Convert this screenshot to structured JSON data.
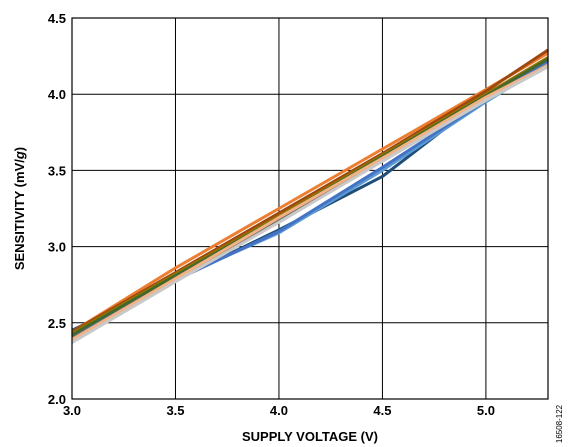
{
  "chart_data": {
    "type": "line",
    "xlabel": "SUPPLY VOLTAGE (V)",
    "ylabel_prefix": "SENSITIVITY (mV/",
    "ylabel_italic": "g",
    "ylabel_suffix": ")",
    "xlim": [
      3.0,
      5.3
    ],
    "ylim": [
      2.0,
      4.5
    ],
    "x_ticks": [
      3.0,
      3.5,
      4.0,
      4.5,
      5.0
    ],
    "x_tick_labels": [
      "3.0",
      "3.5",
      "4.0",
      "4.5",
      "5.0"
    ],
    "y_ticks": [
      2.0,
      2.5,
      3.0,
      3.5,
      4.0,
      4.5
    ],
    "y_tick_labels": [
      "2.0",
      "2.5",
      "3.0",
      "3.5",
      "4.0",
      "4.5"
    ],
    "grid": true,
    "figure_id": "16508-122",
    "series": [
      {
        "color": "#1f4e79",
        "x": [
          3.0,
          3.5,
          4.0,
          4.5,
          5.0,
          5.3
        ],
        "y": [
          2.45,
          2.78,
          3.11,
          3.46,
          3.98,
          4.23
        ]
      },
      {
        "color": "#ed7d31",
        "x": [
          3.0,
          3.5,
          4.0,
          4.5,
          5.0,
          5.3
        ],
        "y": [
          2.44,
          2.86,
          3.25,
          3.64,
          4.03,
          4.27
        ]
      },
      {
        "color": "#a5a5a5",
        "x": [
          3.0,
          3.5,
          4.0,
          4.5,
          5.0,
          5.3
        ],
        "y": [
          2.41,
          2.8,
          3.19,
          3.58,
          3.97,
          4.21
        ]
      },
      {
        "color": "#ffc000",
        "x": [
          3.0,
          3.5,
          4.0,
          4.5,
          5.0,
          5.3
        ],
        "y": [
          2.42,
          2.81,
          3.2,
          3.59,
          3.98,
          4.22
        ]
      },
      {
        "color": "#5b9bd5",
        "x": [
          3.0,
          3.5,
          4.0,
          4.5,
          5.0,
          5.3
        ],
        "y": [
          2.43,
          2.79,
          3.09,
          3.5,
          3.95,
          4.2
        ]
      },
      {
        "color": "#70ad47",
        "x": [
          3.0,
          3.5,
          4.0,
          4.5,
          5.0,
          5.3
        ],
        "y": [
          2.42,
          2.8,
          3.16,
          3.57,
          3.99,
          4.24
        ]
      },
      {
        "color": "#264478",
        "x": [
          3.0,
          3.5,
          4.0,
          4.5,
          5.0,
          5.3
        ],
        "y": [
          2.43,
          2.82,
          3.21,
          3.6,
          4.0,
          4.23
        ]
      },
      {
        "color": "#9e480e",
        "x": [
          3.0,
          3.5,
          4.0,
          4.5,
          5.0,
          5.3
        ],
        "y": [
          2.44,
          2.83,
          3.22,
          3.61,
          4.02,
          4.29
        ]
      },
      {
        "color": "#636363",
        "x": [
          3.0,
          3.5,
          4.0,
          4.5,
          5.0,
          5.3
        ],
        "y": [
          2.41,
          2.79,
          3.18,
          3.58,
          3.98,
          4.22
        ]
      },
      {
        "color": "#997300",
        "x": [
          3.0,
          3.5,
          4.0,
          4.5,
          5.0,
          5.3
        ],
        "y": [
          2.43,
          2.82,
          3.2,
          3.6,
          4.0,
          4.24
        ]
      },
      {
        "color": "#4472c4",
        "x": [
          3.0,
          3.5,
          4.0,
          4.5,
          5.0,
          5.3
        ],
        "y": [
          2.42,
          2.78,
          3.1,
          3.52,
          3.96,
          4.22
        ]
      },
      {
        "color": "#43682b",
        "x": [
          3.0,
          3.5,
          4.0,
          4.5,
          5.0,
          5.3
        ],
        "y": [
          2.42,
          2.81,
          3.19,
          3.59,
          3.99,
          4.23
        ]
      },
      {
        "color": "#f4b183",
        "x": [
          3.0,
          3.5,
          4.0,
          4.5,
          5.0,
          5.3
        ],
        "y": [
          2.39,
          2.79,
          3.19,
          3.58,
          3.98,
          4.19
        ]
      },
      {
        "color": "#c9c9c9",
        "x": [
          3.0,
          3.5,
          4.0,
          4.5,
          5.0,
          5.3
        ],
        "y": [
          2.37,
          2.77,
          3.16,
          3.56,
          3.96,
          4.18
        ]
      }
    ]
  }
}
